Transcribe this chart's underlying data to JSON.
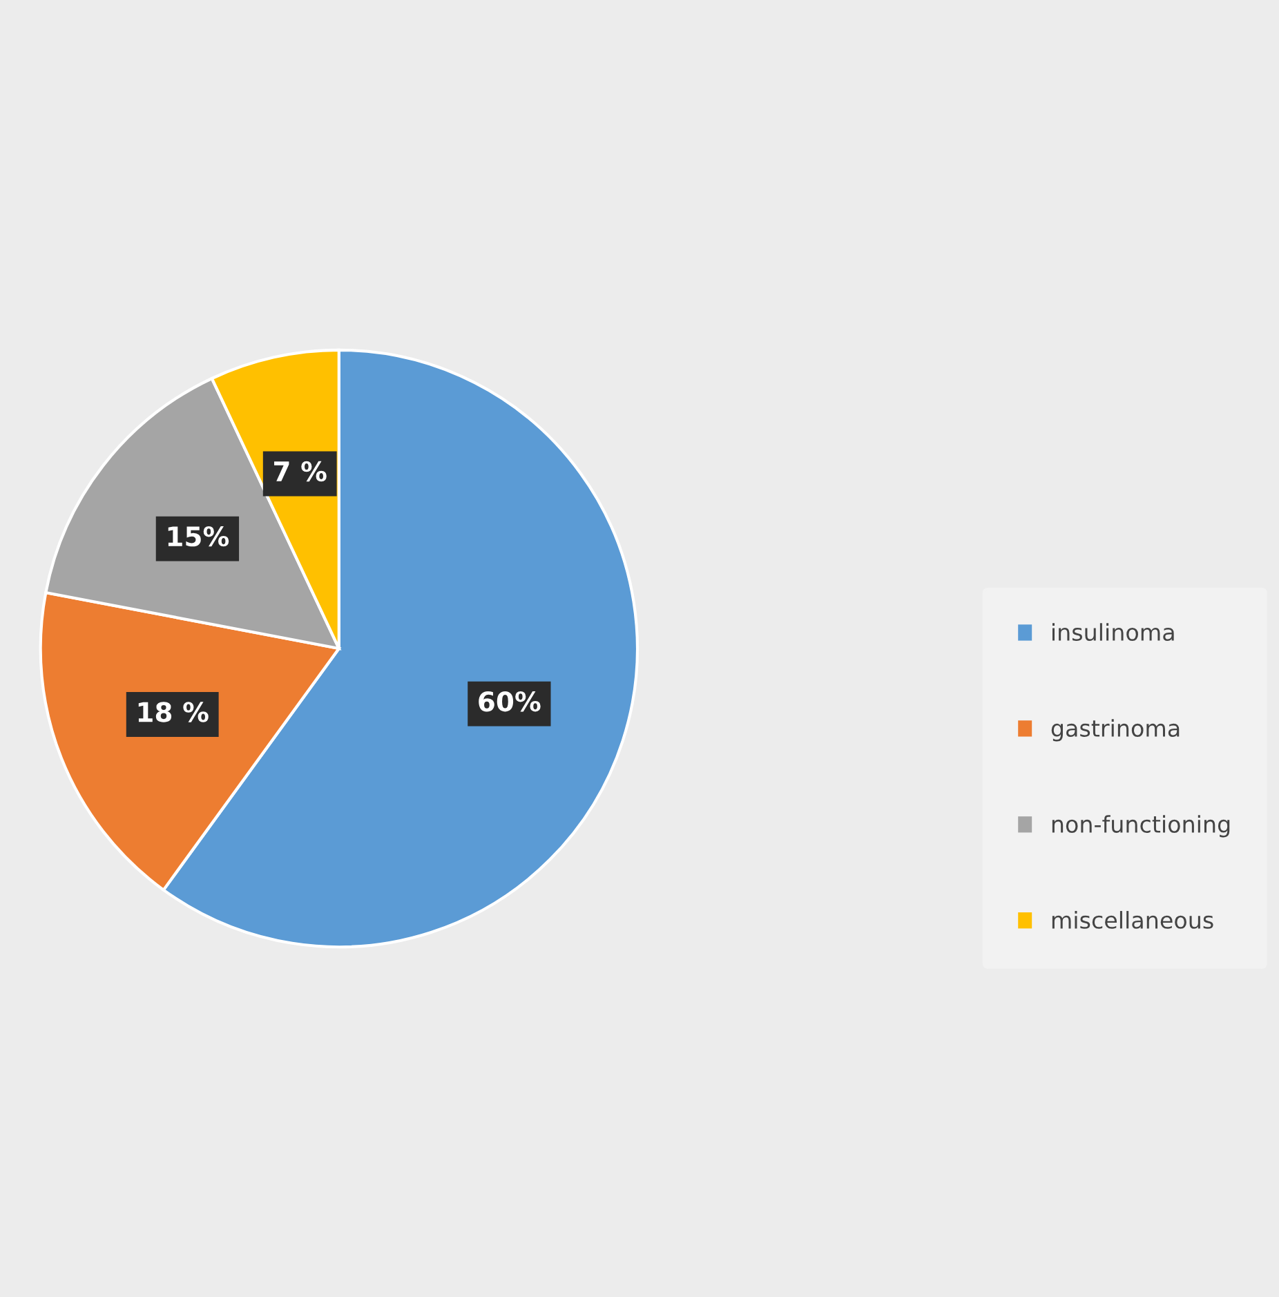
{
  "chart_data": {
    "type": "pie",
    "categories": [
      "insulinoma",
      "gastrinoma",
      "non-functioning",
      "miscellaneous"
    ],
    "values": [
      60,
      18,
      15,
      7
    ],
    "colors": [
      "#5b9bd5",
      "#ed7d31",
      "#a5a5a5",
      "#ffc000"
    ],
    "value_labels": [
      "60%",
      "18 %",
      "15%",
      "7 %"
    ],
    "legend": "right"
  }
}
